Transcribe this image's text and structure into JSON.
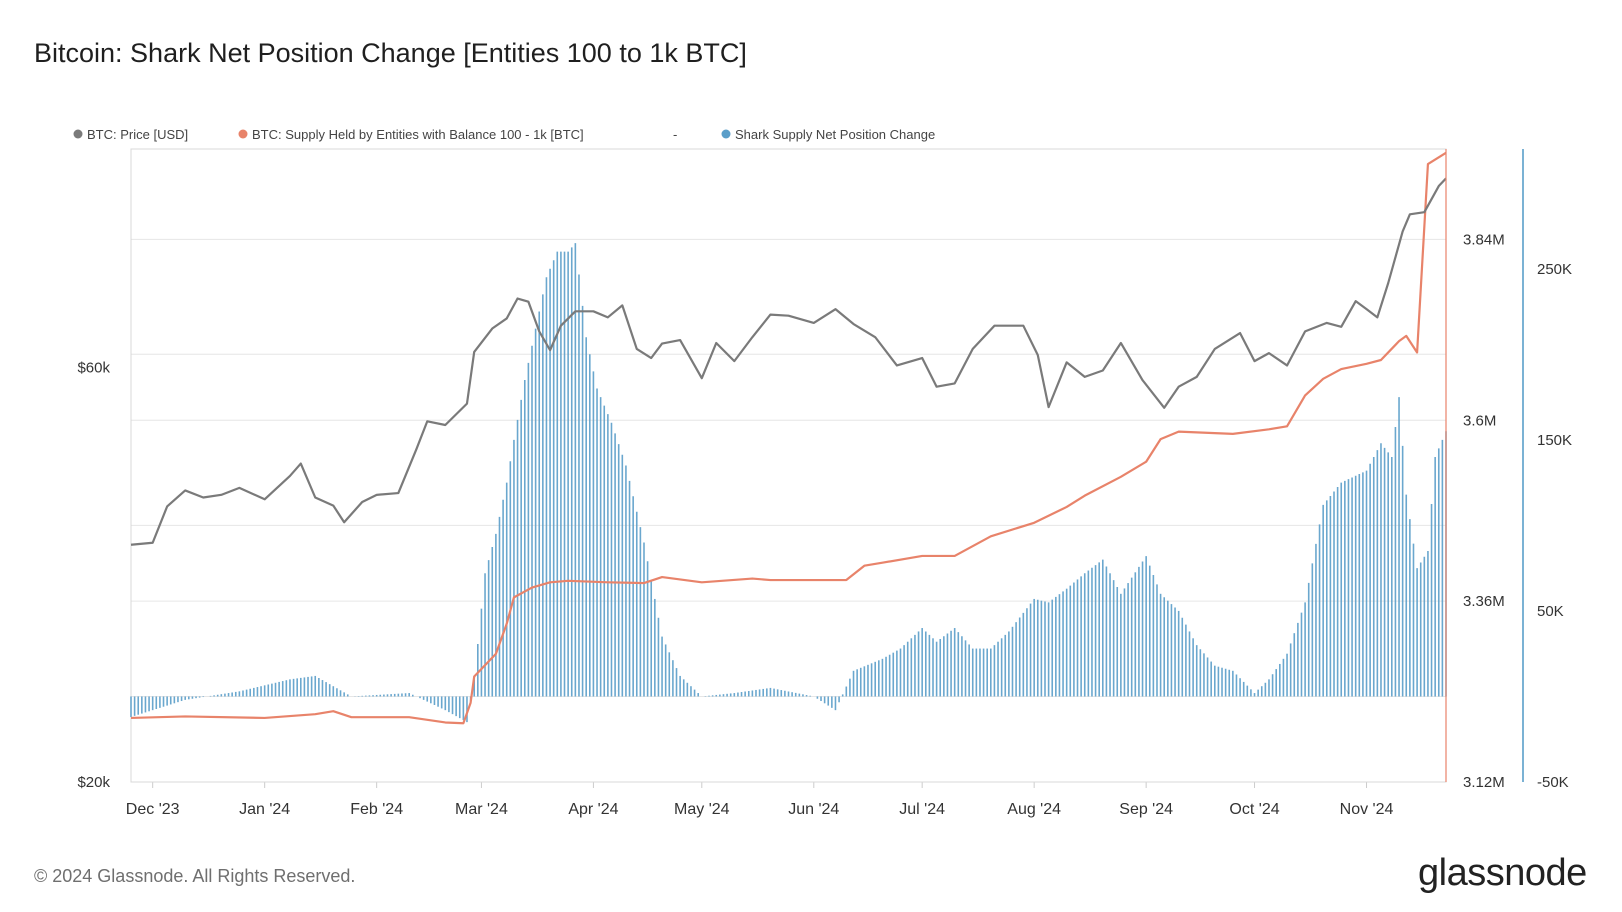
{
  "title": "Bitcoin: Shark Net Position Change [Entities 100 to 1k BTC]",
  "footer": "© 2024 Glassnode. All Rights Reserved.",
  "brand": "glassnode",
  "colors": {
    "price": "#7a7a7a",
    "supply": "#e8836a",
    "netpos": "#5a9ec9",
    "grid": "#e6e6e6",
    "frame": "#d8d8d8"
  },
  "chart_data": {
    "type": "line",
    "legend": {
      "placement": "top-left",
      "items": [
        {
          "label": "BTC: Price [USD]",
          "color": "#7a7a7a"
        },
        {
          "label": "BTC: Supply Held by Entities with Balance 100 - 1k [BTC]",
          "color": "#e8836a"
        },
        {
          "label": "-",
          "color": ""
        },
        {
          "label": "Shark Supply Net Position Change",
          "color": "#5a9ec9"
        }
      ]
    },
    "x_ticks": [
      "Dec '23",
      "Jan '24",
      "Feb '24",
      "Mar '24",
      "Apr '24",
      "May '24",
      "Jun '24",
      "Jul '24",
      "Aug '24",
      "Sep '24",
      "Oct '24",
      "Nov '24"
    ],
    "axes": {
      "price": {
        "scale": "log",
        "ticks": [
          "$60k",
          "$20k"
        ],
        "tick_values": [
          60000,
          20000
        ],
        "range": [
          20000,
          107000
        ]
      },
      "supply": {
        "scale": "linear",
        "ticks": [
          "3.84M",
          "3.6M",
          "3.36M",
          "3.12M"
        ],
        "tick_values": [
          3840000,
          3600000,
          3360000,
          3120000
        ],
        "range": [
          3120000,
          3960000
        ]
      },
      "netpos": {
        "scale": "linear",
        "ticks": [
          "250K",
          "150K",
          "50K",
          "-50K"
        ],
        "tick_values": [
          250000,
          150000,
          50000,
          -50000
        ],
        "range": [
          -50000,
          320000
        ]
      }
    },
    "grid": true,
    "series": [
      {
        "name": "BTC: Price [USD]",
        "type": "line",
        "axis": "price",
        "x": [
          "2023-11-25",
          "2023-12-01",
          "2023-12-05",
          "2023-12-10",
          "2023-12-15",
          "2023-12-20",
          "2023-12-25",
          "2024-01-01",
          "2024-01-08",
          "2024-01-11",
          "2024-01-15",
          "2024-01-20",
          "2024-01-23",
          "2024-01-28",
          "2024-02-01",
          "2024-02-07",
          "2024-02-12",
          "2024-02-15",
          "2024-02-20",
          "2024-02-26",
          "2024-02-28",
          "2024-03-04",
          "2024-03-08",
          "2024-03-11",
          "2024-03-14",
          "2024-03-17",
          "2024-03-20",
          "2024-03-23",
          "2024-03-27",
          "2024-04-01",
          "2024-04-05",
          "2024-04-09",
          "2024-04-13",
          "2024-04-17",
          "2024-04-20",
          "2024-04-25",
          "2024-05-01",
          "2024-05-05",
          "2024-05-10",
          "2024-05-15",
          "2024-05-20",
          "2024-05-25",
          "2024-06-01",
          "2024-06-07",
          "2024-06-12",
          "2024-06-18",
          "2024-06-24",
          "2024-07-01",
          "2024-07-05",
          "2024-07-10",
          "2024-07-15",
          "2024-07-21",
          "2024-07-29",
          "2024-08-02",
          "2024-08-05",
          "2024-08-10",
          "2024-08-15",
          "2024-08-20",
          "2024-08-25",
          "2024-08-31",
          "2024-09-06",
          "2024-09-10",
          "2024-09-15",
          "2024-09-20",
          "2024-09-27",
          "2024-10-01",
          "2024-10-05",
          "2024-10-10",
          "2024-10-15",
          "2024-10-21",
          "2024-10-25",
          "2024-10-29",
          "2024-11-01",
          "2024-11-04",
          "2024-11-07",
          "2024-11-11",
          "2024-11-13",
          "2024-11-17",
          "2024-11-21",
          "2024-11-23"
        ],
        "y": [
          37500,
          37700,
          41500,
          43300,
          42500,
          42800,
          43600,
          42300,
          45000,
          46500,
          42500,
          41600,
          39800,
          42000,
          42800,
          43000,
          48300,
          52000,
          51500,
          54500,
          62500,
          66500,
          68300,
          72000,
          71400,
          66000,
          62800,
          67000,
          69600,
          69600,
          68500,
          70700,
          63000,
          61500,
          63900,
          64500,
          58300,
          64000,
          61000,
          65000,
          69000,
          68800,
          67500,
          70000,
          67300,
          65000,
          60300,
          61500,
          57000,
          57500,
          63000,
          67000,
          67000,
          62000,
          54000,
          60800,
          58500,
          59500,
          64000,
          58000,
          53900,
          57000,
          58500,
          63000,
          65700,
          61000,
          62300,
          60300,
          66000,
          67500,
          66800,
          71500,
          70000,
          68500,
          75000,
          86000,
          90000,
          90500,
          97000,
          99000
        ]
      },
      {
        "name": "BTC: Supply Held by Entities with Balance 100 - 1k [BTC]",
        "type": "line",
        "axis": "supply",
        "x": [
          "2023-11-25",
          "2023-12-10",
          "2024-01-01",
          "2024-01-15",
          "2024-01-20",
          "2024-01-25",
          "2024-02-10",
          "2024-02-20",
          "2024-02-25",
          "2024-02-27",
          "2024-02-28",
          "2024-03-05",
          "2024-03-08",
          "2024-03-10",
          "2024-03-15",
          "2024-03-20",
          "2024-03-25",
          "2024-04-05",
          "2024-04-15",
          "2024-04-20",
          "2024-05-01",
          "2024-05-15",
          "2024-05-20",
          "2024-06-01",
          "2024-06-10",
          "2024-06-15",
          "2024-06-20",
          "2024-07-01",
          "2024-07-10",
          "2024-07-20",
          "2024-08-01",
          "2024-08-10",
          "2024-08-15",
          "2024-08-25",
          "2024-09-01",
          "2024-09-05",
          "2024-09-10",
          "2024-09-20",
          "2024-09-25",
          "2024-10-05",
          "2024-10-10",
          "2024-10-15",
          "2024-10-20",
          "2024-10-25",
          "2024-11-01",
          "2024-11-05",
          "2024-11-08",
          "2024-11-10",
          "2024-11-12",
          "2024-11-15",
          "2024-11-18",
          "2024-11-23"
        ],
        "y": [
          3205000,
          3207000,
          3205000,
          3210000,
          3214000,
          3206000,
          3206000,
          3199000,
          3198000,
          3225000,
          3260000,
          3290000,
          3330000,
          3365000,
          3378000,
          3385000,
          3387000,
          3385000,
          3384000,
          3392000,
          3385000,
          3390000,
          3388000,
          3388000,
          3388000,
          3407000,
          3411000,
          3420000,
          3420000,
          3446000,
          3464000,
          3485000,
          3500000,
          3525000,
          3545000,
          3575000,
          3585000,
          3583000,
          3582000,
          3588000,
          3592000,
          3633000,
          3655000,
          3668000,
          3675000,
          3680000,
          3695000,
          3705000,
          3712000,
          3690000,
          3940000,
          3955000
        ]
      },
      {
        "name": "Shark Supply Net Position Change",
        "type": "bar",
        "axis": "netpos",
        "x": [
          "2023-11-25",
          "2023-12-10",
          "2023-12-25",
          "2024-01-08",
          "2024-01-15",
          "2024-01-25",
          "2024-02-10",
          "2024-02-20",
          "2024-02-26",
          "2024-02-28",
          "2024-03-02",
          "2024-03-05",
          "2024-03-08",
          "2024-03-10",
          "2024-03-13",
          "2024-03-16",
          "2024-03-19",
          "2024-03-22",
          "2024-03-25",
          "2024-03-27",
          "2024-03-30",
          "2024-04-02",
          "2024-04-06",
          "2024-04-10",
          "2024-04-15",
          "2024-04-20",
          "2024-04-25",
          "2024-05-01",
          "2024-05-10",
          "2024-05-20",
          "2024-06-01",
          "2024-06-07",
          "2024-06-12",
          "2024-06-20",
          "2024-06-25",
          "2024-07-01",
          "2024-07-05",
          "2024-07-10",
          "2024-07-15",
          "2024-07-20",
          "2024-07-25",
          "2024-08-01",
          "2024-08-05",
          "2024-08-10",
          "2024-08-15",
          "2024-08-20",
          "2024-08-25",
          "2024-09-01",
          "2024-09-05",
          "2024-09-10",
          "2024-09-15",
          "2024-09-20",
          "2024-09-25",
          "2024-10-01",
          "2024-10-05",
          "2024-10-10",
          "2024-10-15",
          "2024-10-20",
          "2024-10-25",
          "2024-11-01",
          "2024-11-05",
          "2024-11-08",
          "2024-11-10",
          "2024-11-12",
          "2024-11-15",
          "2024-11-18",
          "2024-11-20",
          "2024-11-23"
        ],
        "y": [
          -12000,
          -2000,
          3000,
          10000,
          12000,
          0,
          2000,
          -8000,
          -15000,
          10000,
          72000,
          95000,
          125000,
          150000,
          185000,
          215000,
          245000,
          260000,
          260000,
          265000,
          210000,
          180000,
          160000,
          135000,
          90000,
          35000,
          12000,
          0,
          2000,
          5000,
          0,
          -8000,
          15000,
          22000,
          28000,
          40000,
          32000,
          40000,
          28000,
          28000,
          38000,
          57000,
          55000,
          63000,
          72000,
          80000,
          60000,
          82000,
          60000,
          50000,
          30000,
          18000,
          15000,
          2000,
          10000,
          25000,
          55000,
          112000,
          125000,
          132000,
          148000,
          140000,
          175000,
          118000,
          75000,
          85000,
          140000,
          155000
        ]
      }
    ]
  }
}
